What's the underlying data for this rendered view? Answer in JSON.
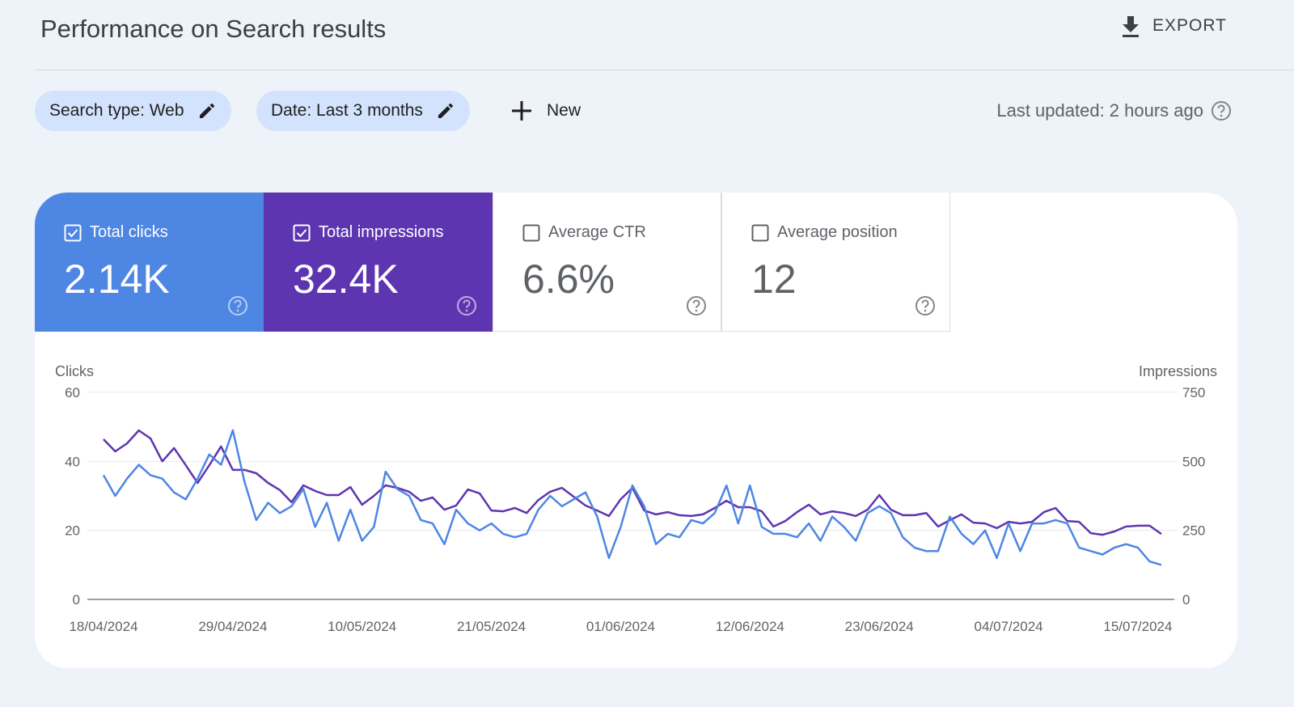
{
  "header": {
    "title": "Performance on Search results",
    "export": "EXPORT"
  },
  "filters": {
    "chips": [
      "Search type: Web",
      "Date: Last 3 months"
    ],
    "new": "New",
    "last_updated": "Last updated: 2 hours ago"
  },
  "metrics": [
    {
      "label": "Total clicks",
      "value": "2.14K",
      "selected": true,
      "color": "#4e86e4"
    },
    {
      "label": "Total impressions",
      "value": "32.4K",
      "selected": true,
      "color": "#5e35b1"
    },
    {
      "label": "Average CTR",
      "value": "6.6%",
      "selected": false,
      "color": "#ffffff"
    },
    {
      "label": "Average position",
      "value": "12",
      "selected": false,
      "color": "#ffffff"
    }
  ],
  "chart_data": {
    "type": "line",
    "x": [
      "18/04/2024",
      "19/04/2024",
      "20/04/2024",
      "21/04/2024",
      "22/04/2024",
      "23/04/2024",
      "24/04/2024",
      "25/04/2024",
      "26/04/2024",
      "27/04/2024",
      "28/04/2024",
      "29/04/2024",
      "30/04/2024",
      "01/05/2024",
      "02/05/2024",
      "03/05/2024",
      "04/05/2024",
      "05/05/2024",
      "06/05/2024",
      "07/05/2024",
      "08/05/2024",
      "09/05/2024",
      "10/05/2024",
      "11/05/2024",
      "12/05/2024",
      "13/05/2024",
      "14/05/2024",
      "15/05/2024",
      "16/05/2024",
      "17/05/2024",
      "18/05/2024",
      "19/05/2024",
      "20/05/2024",
      "21/05/2024",
      "22/05/2024",
      "23/05/2024",
      "24/05/2024",
      "25/05/2024",
      "26/05/2024",
      "27/05/2024",
      "28/05/2024",
      "29/05/2024",
      "30/05/2024",
      "31/05/2024",
      "01/06/2024",
      "02/06/2024",
      "03/06/2024",
      "04/06/2024",
      "05/06/2024",
      "06/06/2024",
      "07/06/2024",
      "08/06/2024",
      "09/06/2024",
      "10/06/2024",
      "11/06/2024",
      "12/06/2024",
      "13/06/2024",
      "14/06/2024",
      "15/06/2024",
      "16/06/2024",
      "17/06/2024",
      "18/06/2024",
      "19/06/2024",
      "20/06/2024",
      "21/06/2024",
      "22/06/2024",
      "23/06/2024",
      "24/06/2024",
      "25/06/2024",
      "26/06/2024",
      "27/06/2024",
      "28/06/2024",
      "29/06/2024",
      "30/06/2024",
      "01/07/2024",
      "02/07/2024",
      "03/07/2024",
      "04/07/2024",
      "05/07/2024",
      "06/07/2024",
      "07/07/2024",
      "08/07/2024",
      "09/07/2024",
      "10/07/2024",
      "11/07/2024",
      "12/07/2024",
      "13/07/2024",
      "14/07/2024",
      "15/07/2024",
      "16/07/2024",
      "17/07/2024"
    ],
    "xticks": [
      "18/04/2024",
      "29/04/2024",
      "10/05/2024",
      "21/05/2024",
      "01/06/2024",
      "12/06/2024",
      "23/06/2024",
      "04/07/2024",
      "15/07/2024"
    ],
    "series": [
      {
        "name": "Clicks",
        "color": "#4e86e4",
        "axis": "y",
        "values": [
          36,
          30,
          35,
          39,
          36,
          35,
          31,
          29,
          35,
          42,
          39,
          49,
          34,
          23,
          28,
          25,
          27,
          32,
          21,
          28,
          17,
          26,
          17,
          21,
          37,
          32,
          30,
          23,
          22,
          16,
          26,
          22,
          20,
          22,
          19,
          18,
          19,
          26,
          30,
          27,
          29,
          31,
          24,
          12,
          21,
          33,
          27,
          16,
          19,
          18,
          23,
          22,
          25,
          33,
          22,
          33,
          21,
          19,
          19,
          18,
          22,
          17,
          24,
          21,
          17,
          25,
          27,
          25,
          18,
          15,
          14,
          14,
          24,
          19,
          16,
          20,
          12,
          22,
          14,
          22,
          22,
          23,
          22,
          15,
          14,
          13,
          15,
          16,
          15,
          11,
          10
        ]
      },
      {
        "name": "Impressions",
        "color": "#5e35b1",
        "axis": "y2",
        "values": [
          580,
          536,
          565,
          612,
          583,
          500,
          548,
          486,
          422,
          486,
          554,
          469,
          469,
          457,
          422,
          396,
          352,
          413,
          393,
          378,
          378,
          407,
          343,
          375,
          413,
          404,
          390,
          357,
          369,
          325,
          340,
          398,
          384,
          322,
          319,
          331,
          313,
          360,
          390,
          404,
          372,
          340,
          322,
          302,
          363,
          404,
          322,
          308,
          316,
          305,
          302,
          308,
          331,
          357,
          334,
          334,
          319,
          264,
          284,
          316,
          343,
          308,
          319,
          313,
          302,
          325,
          378,
          325,
          305,
          305,
          313,
          264,
          287,
          308,
          278,
          275,
          258,
          281,
          275,
          281,
          316,
          331,
          284,
          281,
          240,
          234,
          246,
          264,
          267,
          267,
          237
        ]
      }
    ],
    "ylim": [
      0,
      60
    ],
    "yticks": [
      0,
      20,
      40,
      60
    ],
    "y2lim": [
      0,
      750
    ],
    "y2ticks": [
      0,
      250,
      500,
      750
    ],
    "grid": true
  }
}
